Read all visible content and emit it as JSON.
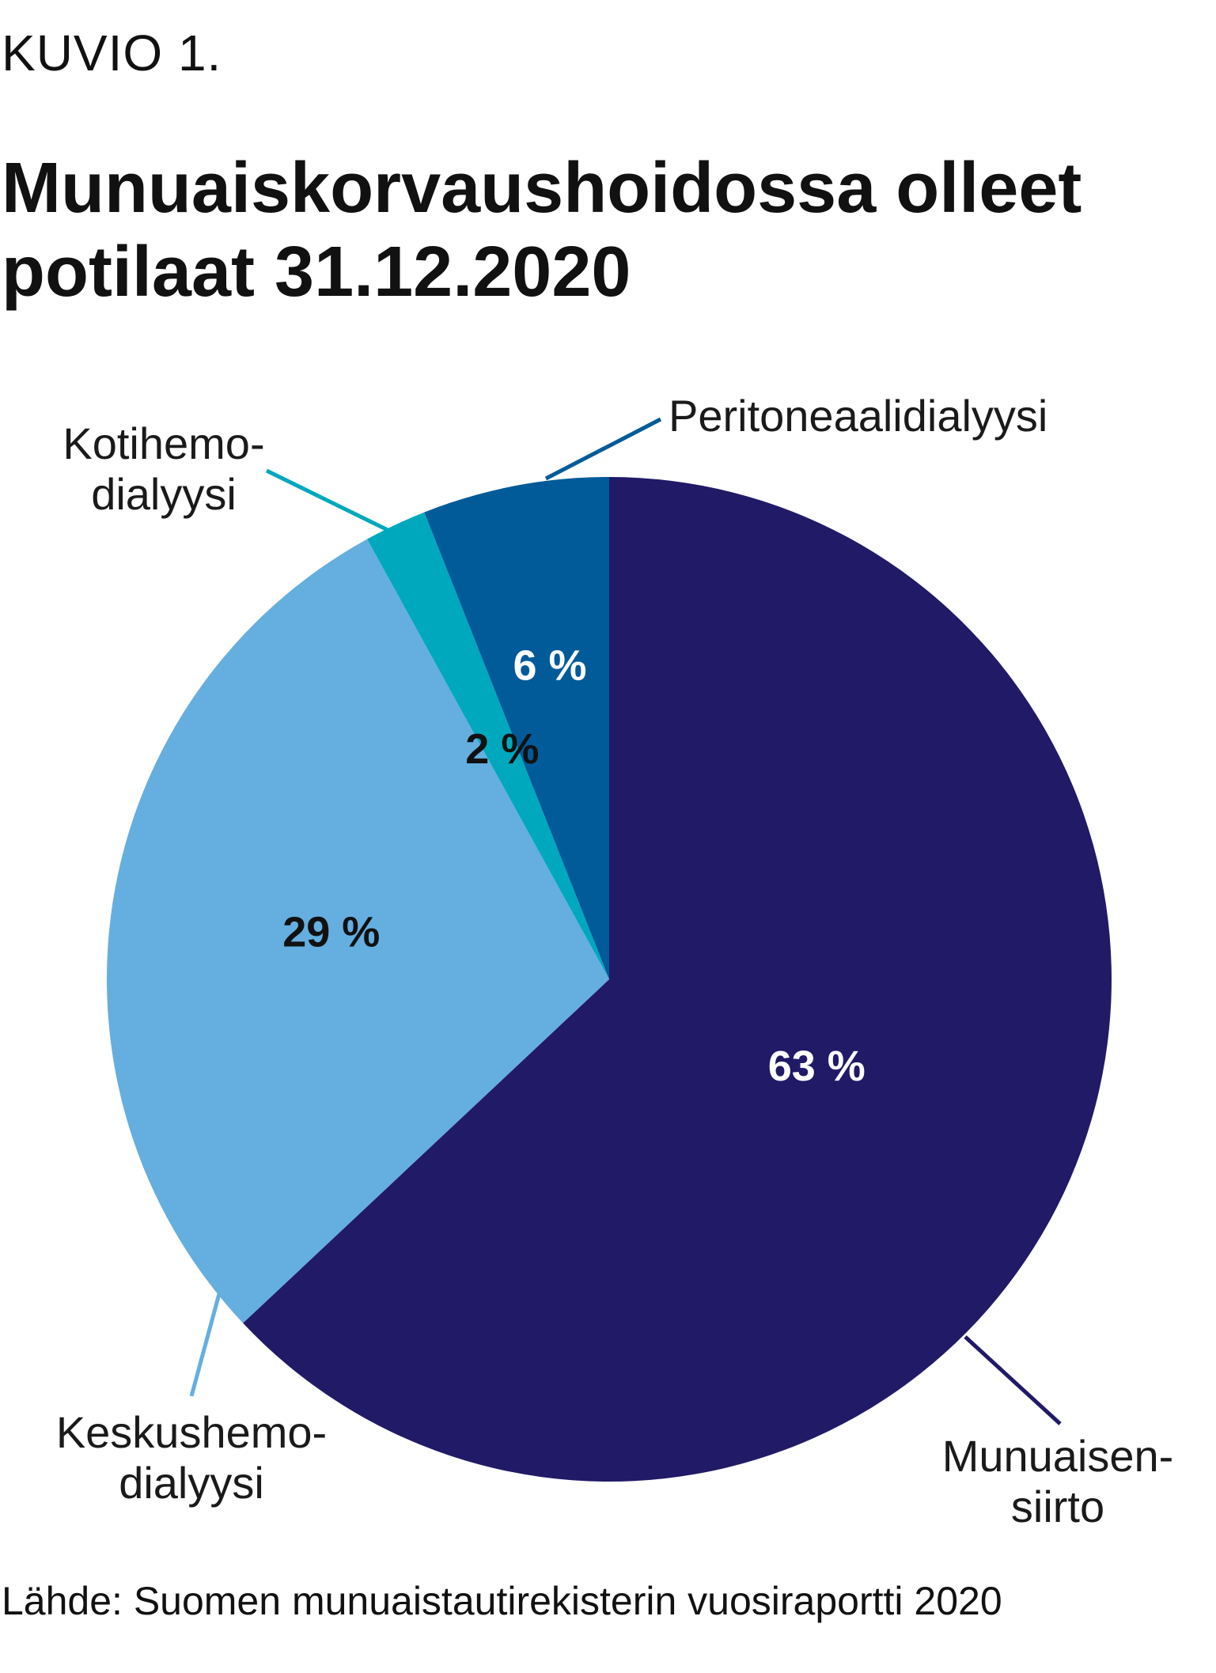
{
  "figure_label": "KUVIO 1.",
  "source": "Lähde: Suomen munuaistautirekisterin vuosiraportti 2020",
  "chart_data": {
    "type": "pie",
    "title": "Munuaiskorvaushoidossa olleet potilaat 31.12.2020",
    "start_angle_deg": 0,
    "direction": "clockwise",
    "slices": [
      {
        "label_lines": [
          "Munuaisen-",
          "siirto"
        ],
        "value": 63,
        "value_label": "63 %",
        "color": "#211a67",
        "text_color": "#ffffff"
      },
      {
        "label_lines": [
          "Keskushemo-",
          "dialyysi"
        ],
        "value": 29,
        "value_label": "29 %",
        "color": "#65aee0",
        "text_color": "#111111"
      },
      {
        "label_lines": [
          "Kotihemo-",
          "dialyysi"
        ],
        "value": 2,
        "value_label": "2 %",
        "color": "#00a8bd",
        "text_color": "#111111"
      },
      {
        "label_lines": [
          "Peritoneaalidialyysi"
        ],
        "value": 6,
        "value_label": "6 %",
        "color": "#005b98",
        "text_color": "#ffffff"
      }
    ]
  }
}
